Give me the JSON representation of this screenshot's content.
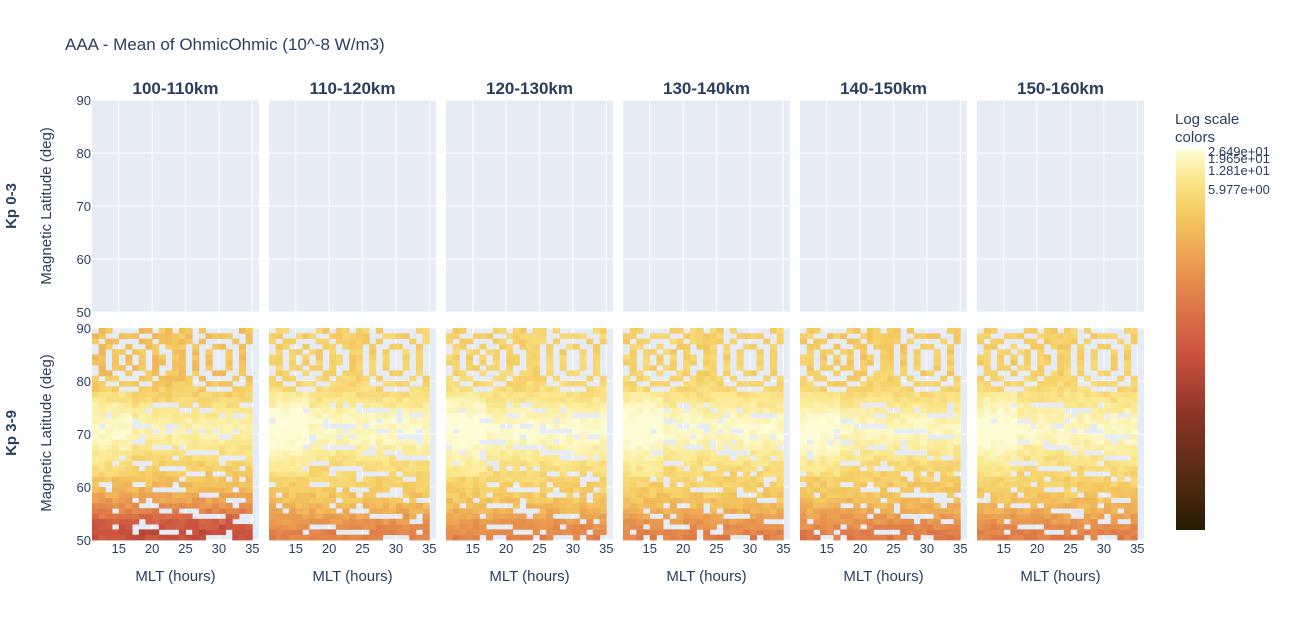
{
  "chart_data": {
    "type": "heatmap",
    "title": "AAA - Mean of OhmicOhmic (10^-8 W/m3)",
    "column_titles": [
      "100-110km",
      "110-120km",
      "120-130km",
      "130-140km",
      "140-150km",
      "150-160km"
    ],
    "row_titles": [
      "Kp 0-3",
      "Kp 3-9"
    ],
    "xlabel": "MLT (hours)",
    "ylabel": "Magnetic Latitude (deg)",
    "xlim": [
      11,
      36
    ],
    "ylim": [
      50,
      90
    ],
    "xticks": [
      15,
      20,
      25,
      30,
      35
    ],
    "yticks": [
      50,
      60,
      70,
      80,
      90
    ],
    "colorbar": {
      "title": "Log scale colors",
      "tick_labels": [
        "2.649e+01",
        "1.965e+01",
        "1.281e+01",
        "5.977e+00"
      ],
      "colorscale": [
        "#271c03",
        "#4f2a10",
        "#8a3525",
        "#c94f3f",
        "#df7a48",
        "#eca252",
        "#f5cc62",
        "#fbe990",
        "#fdfcd5"
      ]
    },
    "panels_kp_0_3": "no data",
    "panels_kp_3_9": "dense gridded data; brightest values near 70 deg latitude, darker values toward 50-55 deg"
  }
}
